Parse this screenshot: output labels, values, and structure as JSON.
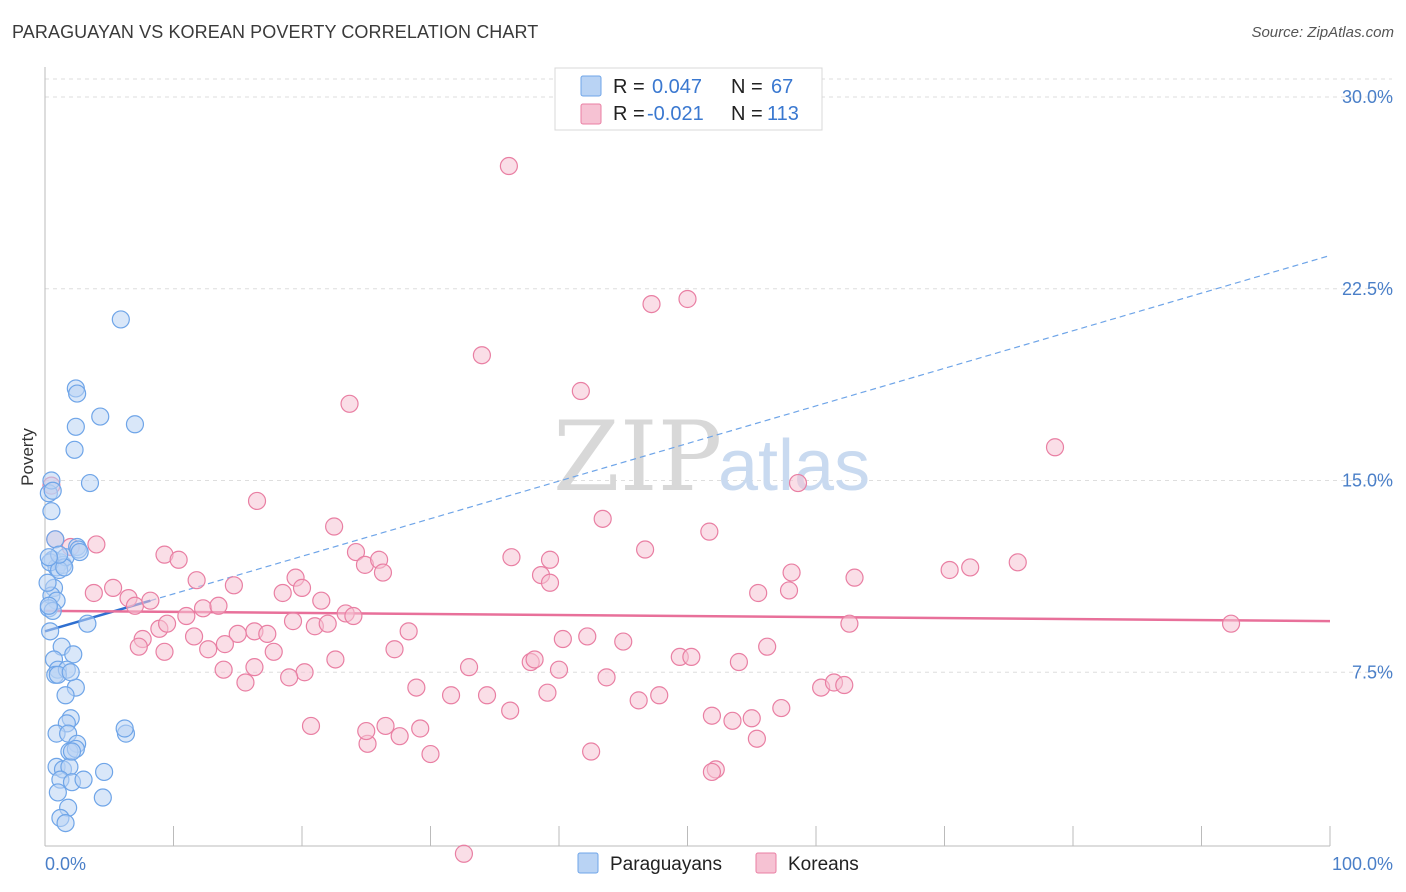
{
  "title": "PARAGUAYAN VS KOREAN POVERTY CORRELATION CHART",
  "source": "Source: ZipAtlas.com",
  "chart_data": {
    "type": "scatter",
    "ylabel": "Poverty",
    "xlim": [
      0,
      100
    ],
    "ylim": [
      0,
      30
    ],
    "x_tick_labels": {
      "min": "0.0%",
      "max": "100.0%"
    },
    "y_ticks": [
      {
        "value": 7.5,
        "label": "7.5%"
      },
      {
        "value": 15.0,
        "label": "15.0%"
      },
      {
        "value": 22.5,
        "label": "22.5%"
      },
      {
        "value": 30.0,
        "label": "30.0%"
      }
    ],
    "watermark": {
      "zip": "ZIP",
      "atlas": "atlas"
    },
    "legend": {
      "r_label": "R =",
      "n_label": "N =",
      "entries": [
        {
          "name": "Paraguayans",
          "r": "0.047",
          "n": "67",
          "color": "#6fa5e8",
          "fill": "#b9d3f4"
        },
        {
          "name": "Koreans",
          "r": "-0.021",
          "n": "113",
          "color": "#e97fa3",
          "fill": "#f6c2d3"
        }
      ]
    },
    "series": [
      {
        "name": "Paraguayans",
        "color": "#6fa5e8",
        "trend": {
          "x0": 0,
          "y0": 9.1,
          "x1": 8.2,
          "y1": 10.3,
          "ext_x1": 100,
          "ext_y1": 23.8
        },
        "points": [
          [
            0.3,
            14.5
          ],
          [
            0.5,
            13.8
          ],
          [
            0.8,
            12.7
          ],
          [
            0.6,
            11.9
          ],
          [
            1.2,
            11.8
          ],
          [
            0.9,
            11.6
          ],
          [
            1.4,
            11.7
          ],
          [
            1.6,
            12.0
          ],
          [
            0.4,
            11.8
          ],
          [
            1.1,
            11.5
          ],
          [
            0.7,
            10.8
          ],
          [
            0.5,
            10.5
          ],
          [
            0.9,
            10.3
          ],
          [
            0.3,
            10.0
          ],
          [
            0.6,
            9.9
          ],
          [
            0.4,
            9.1
          ],
          [
            1.3,
            8.5
          ],
          [
            2.2,
            8.2
          ],
          [
            0.7,
            8.0
          ],
          [
            1.0,
            7.6
          ],
          [
            0.8,
            7.4
          ],
          [
            1.7,
            7.6
          ],
          [
            2.4,
            6.9
          ],
          [
            1.6,
            6.6
          ],
          [
            2.0,
            5.7
          ],
          [
            1.7,
            5.5
          ],
          [
            0.9,
            5.1
          ],
          [
            1.8,
            5.1
          ],
          [
            2.5,
            4.7
          ],
          [
            1.9,
            4.4
          ],
          [
            2.4,
            4.5
          ],
          [
            0.9,
            3.8
          ],
          [
            1.4,
            3.7
          ],
          [
            1.9,
            3.8
          ],
          [
            4.6,
            3.6
          ],
          [
            1.2,
            3.3
          ],
          [
            2.1,
            3.2
          ],
          [
            3.0,
            3.3
          ],
          [
            1.0,
            2.8
          ],
          [
            4.5,
            2.6
          ],
          [
            1.8,
            2.2
          ],
          [
            1.2,
            1.8
          ],
          [
            1.6,
            1.6
          ],
          [
            2.3,
            16.2
          ],
          [
            2.4,
            17.1
          ],
          [
            3.5,
            14.9
          ],
          [
            4.3,
            17.5
          ],
          [
            2.4,
            18.6
          ],
          [
            2.5,
            18.4
          ],
          [
            7.0,
            17.2
          ],
          [
            5.9,
            21.3
          ],
          [
            2.5,
            12.4
          ],
          [
            2.6,
            12.3
          ],
          [
            2.7,
            12.2
          ],
          [
            3.3,
            9.4
          ],
          [
            6.3,
            5.1
          ],
          [
            6.2,
            5.3
          ],
          [
            1.5,
            11.6
          ],
          [
            1.1,
            12.1
          ],
          [
            0.3,
            12.0
          ],
          [
            0.2,
            11.0
          ],
          [
            0.3,
            10.1
          ],
          [
            0.5,
            15.0
          ],
          [
            0.6,
            14.6
          ],
          [
            1.0,
            7.4
          ],
          [
            2.0,
            7.5
          ],
          [
            2.1,
            4.4
          ]
        ]
      },
      {
        "name": "Koreans",
        "color": "#e97fa3",
        "trend": {
          "x0": 0,
          "y0": 9.9,
          "x1": 100,
          "y1": 9.5
        },
        "points": [
          [
            0.5,
            14.8
          ],
          [
            0.8,
            12.7
          ],
          [
            2.0,
            12.4
          ],
          [
            4.0,
            12.5
          ],
          [
            3.8,
            10.6
          ],
          [
            5.3,
            10.8
          ],
          [
            6.5,
            10.4
          ],
          [
            7.0,
            10.1
          ],
          [
            8.2,
            10.3
          ],
          [
            9.3,
            12.1
          ],
          [
            10.4,
            11.9
          ],
          [
            11.8,
            11.1
          ],
          [
            12.3,
            10.0
          ],
          [
            14.7,
            10.9
          ],
          [
            16.5,
            14.2
          ],
          [
            18.5,
            10.6
          ],
          [
            19.5,
            11.2
          ],
          [
            20.0,
            10.8
          ],
          [
            21.5,
            10.3
          ],
          [
            22.5,
            13.2
          ],
          [
            23.7,
            18.0
          ],
          [
            24.2,
            12.2
          ],
          [
            24.9,
            11.7
          ],
          [
            26.0,
            11.9
          ],
          [
            26.3,
            11.4
          ],
          [
            13.5,
            10.1
          ],
          [
            15.0,
            9.0
          ],
          [
            16.3,
            9.1
          ],
          [
            17.3,
            9.0
          ],
          [
            19.3,
            9.5
          ],
          [
            21.0,
            9.3
          ],
          [
            22.0,
            9.4
          ],
          [
            23.4,
            9.8
          ],
          [
            24.0,
            9.7
          ],
          [
            8.9,
            9.2
          ],
          [
            9.5,
            9.4
          ],
          [
            7.6,
            8.8
          ],
          [
            11.0,
            9.7
          ],
          [
            11.6,
            8.9
          ],
          [
            12.7,
            8.4
          ],
          [
            14.0,
            8.6
          ],
          [
            7.3,
            8.5
          ],
          [
            9.3,
            8.3
          ],
          [
            13.9,
            7.6
          ],
          [
            16.3,
            7.7
          ],
          [
            17.8,
            8.3
          ],
          [
            20.2,
            7.5
          ],
          [
            22.6,
            8.0
          ],
          [
            15.6,
            7.1
          ],
          [
            19.0,
            7.3
          ],
          [
            25.1,
            4.7
          ],
          [
            27.2,
            8.4
          ],
          [
            28.3,
            9.1
          ],
          [
            28.9,
            6.9
          ],
          [
            31.6,
            6.6
          ],
          [
            33.0,
            7.7
          ],
          [
            34.4,
            6.6
          ],
          [
            36.2,
            6.0
          ],
          [
            37.8,
            7.9
          ],
          [
            38.1,
            8.0
          ],
          [
            39.1,
            6.7
          ],
          [
            40.0,
            7.6
          ],
          [
            40.3,
            8.8
          ],
          [
            42.2,
            8.9
          ],
          [
            42.5,
            4.4
          ],
          [
            43.7,
            7.3
          ],
          [
            45.0,
            8.7
          ],
          [
            46.2,
            6.4
          ],
          [
            47.8,
            6.6
          ],
          [
            49.4,
            8.1
          ],
          [
            50.3,
            8.1
          ],
          [
            51.9,
            5.8
          ],
          [
            52.2,
            3.7
          ],
          [
            51.9,
            3.6
          ],
          [
            54.0,
            7.9
          ],
          [
            55.4,
            4.9
          ],
          [
            55.0,
            5.7
          ],
          [
            56.2,
            8.5
          ],
          [
            57.3,
            6.1
          ],
          [
            57.9,
            10.7
          ],
          [
            60.4,
            6.9
          ],
          [
            61.4,
            7.1
          ],
          [
            62.2,
            7.0
          ],
          [
            62.6,
            9.4
          ],
          [
            72.0,
            11.6
          ],
          [
            63.0,
            11.2
          ],
          [
            75.7,
            11.8
          ],
          [
            78.6,
            16.3
          ],
          [
            39.3,
            11.9
          ],
          [
            36.3,
            12.0
          ],
          [
            38.6,
            11.3
          ],
          [
            39.3,
            11.0
          ],
          [
            43.4,
            13.5
          ],
          [
            46.7,
            12.3
          ],
          [
            51.7,
            13.0
          ],
          [
            55.5,
            10.6
          ],
          [
            58.1,
            11.4
          ],
          [
            70.4,
            11.5
          ],
          [
            36.1,
            27.3
          ],
          [
            34.0,
            19.9
          ],
          [
            41.7,
            18.5
          ],
          [
            47.2,
            21.9
          ],
          [
            50.0,
            22.1
          ],
          [
            58.6,
            14.9
          ],
          [
            92.3,
            9.4
          ],
          [
            32.6,
            0.4
          ],
          [
            25.0,
            5.2
          ],
          [
            26.5,
            5.4
          ],
          [
            27.6,
            5.0
          ],
          [
            29.2,
            5.3
          ],
          [
            30.0,
            4.3
          ],
          [
            20.7,
            5.4
          ],
          [
            53.5,
            5.6
          ]
        ]
      }
    ]
  }
}
